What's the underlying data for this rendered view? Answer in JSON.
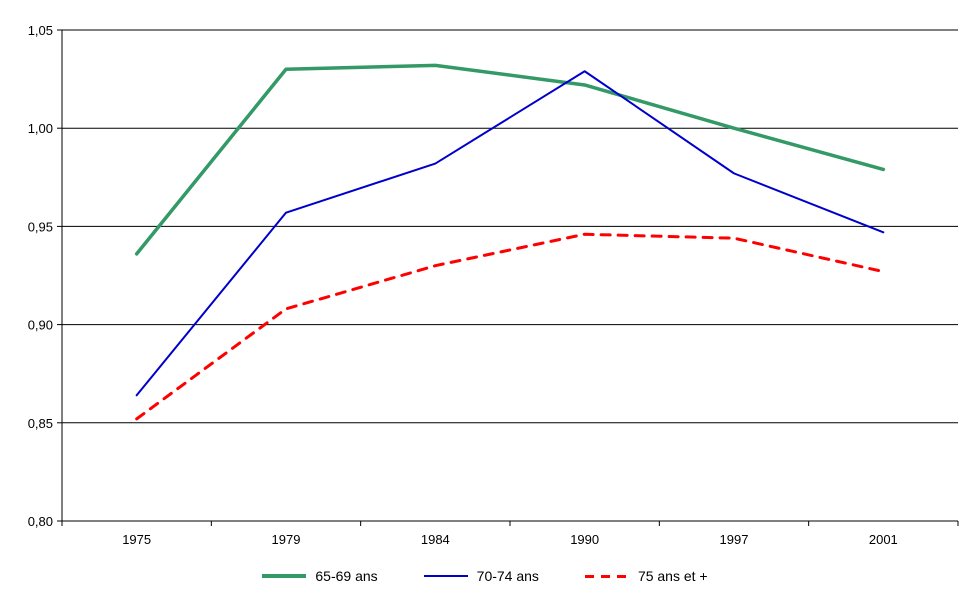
{
  "chart_data": {
    "type": "line",
    "categories": [
      "1975",
      "1979",
      "1984",
      "1990",
      "1997",
      "2001"
    ],
    "series": [
      {
        "name": "65-69 ans",
        "color": "#339966",
        "style": "solid",
        "width": 3.5,
        "values": [
          0.936,
          1.03,
          1.032,
          1.022,
          1.0,
          0.979
        ]
      },
      {
        "name": "70-74 ans",
        "color": "#0000CC",
        "style": "solid",
        "width": 2,
        "values": [
          0.864,
          0.957,
          0.982,
          1.029,
          0.977,
          0.947
        ]
      },
      {
        "name": "75 ans et +",
        "color": "#FF0000",
        "style": "dashed",
        "width": 3,
        "values": [
          0.852,
          0.908,
          0.93,
          0.946,
          0.944,
          0.927
        ]
      }
    ],
    "ylim": [
      0.8,
      1.05
    ],
    "ytick_step": 0.05,
    "ytick_labels": [
      "0,80",
      "0,85",
      "0,90",
      "0,95",
      "1,00",
      "1,05"
    ],
    "grid": true,
    "legend_position": "bottom",
    "axis_color": "#000000",
    "grid_color": "#000000",
    "text_color": "#000000"
  }
}
